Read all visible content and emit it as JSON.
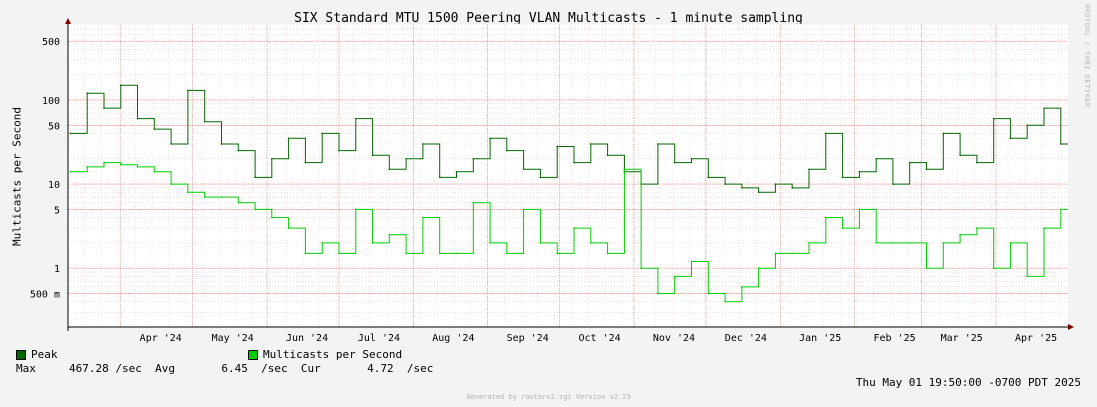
{
  "chart_data": {
    "type": "line",
    "title": "SIX Standard MTU 1500 Peering VLAN Multicasts - 1 minute sampling",
    "ylabel": "Multicasts per Second",
    "yscale": "log",
    "ylim": [
      0.2,
      800
    ],
    "xlim": [
      "2024-03-10",
      "2025-05-01"
    ],
    "y_ticks": [
      {
        "value": 0.5,
        "label": "500 m"
      },
      {
        "value": 1,
        "label": "1"
      },
      {
        "value": 5,
        "label": "5"
      },
      {
        "value": 10,
        "label": "10"
      },
      {
        "value": 50,
        "label": "50"
      },
      {
        "value": 100,
        "label": "100"
      },
      {
        "value": 500,
        "label": "500"
      }
    ],
    "x_ticks": [
      {
        "date": "2024-04-01",
        "label": "Apr '24"
      },
      {
        "date": "2024-05-01",
        "label": "May '24"
      },
      {
        "date": "2024-06-01",
        "label": "Jun '24"
      },
      {
        "date": "2024-07-01",
        "label": "Jul '24"
      },
      {
        "date": "2024-08-01",
        "label": "Aug '24"
      },
      {
        "date": "2024-09-01",
        "label": "Sep '24"
      },
      {
        "date": "2024-10-01",
        "label": "Oct '24"
      },
      {
        "date": "2024-11-01",
        "label": "Nov '24"
      },
      {
        "date": "2024-12-01",
        "label": "Dec '24"
      },
      {
        "date": "2025-01-01",
        "label": "Jan '25"
      },
      {
        "date": "2025-02-01",
        "label": "Feb '25"
      },
      {
        "date": "2025-03-01",
        "label": "Mar '25"
      },
      {
        "date": "2025-04-01",
        "label": "Apr '25"
      }
    ],
    "grid": true,
    "series": [
      {
        "name": "Peak",
        "color": "#006600",
        "x": [
          "2024-03-11",
          "2024-03-18",
          "2024-03-25",
          "2024-04-01",
          "2024-04-08",
          "2024-04-15",
          "2024-04-22",
          "2024-04-29",
          "2024-05-06",
          "2024-05-13",
          "2024-05-20",
          "2024-05-27",
          "2024-06-03",
          "2024-06-10",
          "2024-06-17",
          "2024-06-24",
          "2024-07-01",
          "2024-07-08",
          "2024-07-15",
          "2024-07-22",
          "2024-07-29",
          "2024-08-05",
          "2024-08-12",
          "2024-08-19",
          "2024-08-26",
          "2024-09-02",
          "2024-09-09",
          "2024-09-16",
          "2024-09-23",
          "2024-09-30",
          "2024-10-07",
          "2024-10-14",
          "2024-10-21",
          "2024-10-28",
          "2024-11-04",
          "2024-11-11",
          "2024-11-18",
          "2024-11-25",
          "2024-12-02",
          "2024-12-09",
          "2024-12-16",
          "2024-12-23",
          "2024-12-30",
          "2025-01-06",
          "2025-01-13",
          "2025-01-20",
          "2025-01-27",
          "2025-02-03",
          "2025-02-10",
          "2025-02-17",
          "2025-02-24",
          "2025-03-03",
          "2025-03-10",
          "2025-03-17",
          "2025-03-24",
          "2025-03-31",
          "2025-04-07",
          "2025-04-14",
          "2025-04-21",
          "2025-04-28"
        ],
        "values": [
          40,
          120,
          80,
          150,
          60,
          45,
          30,
          130,
          55,
          30,
          25,
          12,
          20,
          35,
          18,
          40,
          25,
          60,
          22,
          15,
          20,
          30,
          12,
          14,
          20,
          35,
          25,
          15,
          12,
          28,
          18,
          30,
          22,
          14,
          10,
          30,
          18,
          20,
          12,
          10,
          9,
          8,
          10,
          9,
          15,
          40,
          12,
          14,
          20,
          10,
          18,
          15,
          40,
          22,
          18,
          60,
          35,
          50,
          80,
          30
        ]
      },
      {
        "name": "Multicasts per Second",
        "color": "#00cc00",
        "x": [
          "2024-03-11",
          "2024-03-18",
          "2024-03-25",
          "2024-04-01",
          "2024-04-08",
          "2024-04-15",
          "2024-04-22",
          "2024-04-29",
          "2024-05-06",
          "2024-05-13",
          "2024-05-20",
          "2024-05-27",
          "2024-06-03",
          "2024-06-10",
          "2024-06-17",
          "2024-06-24",
          "2024-07-01",
          "2024-07-08",
          "2024-07-15",
          "2024-07-22",
          "2024-07-29",
          "2024-08-05",
          "2024-08-12",
          "2024-08-19",
          "2024-08-26",
          "2024-09-02",
          "2024-09-09",
          "2024-09-16",
          "2024-09-23",
          "2024-09-30",
          "2024-10-07",
          "2024-10-14",
          "2024-10-21",
          "2024-10-28",
          "2024-11-04",
          "2024-11-11",
          "2024-11-18",
          "2024-11-25",
          "2024-12-02",
          "2024-12-09",
          "2024-12-16",
          "2024-12-23",
          "2024-12-30",
          "2025-01-06",
          "2025-01-13",
          "2025-01-20",
          "2025-01-27",
          "2025-02-03",
          "2025-02-10",
          "2025-02-17",
          "2025-02-24",
          "2025-03-03",
          "2025-03-10",
          "2025-03-17",
          "2025-03-24",
          "2025-03-31",
          "2025-04-07",
          "2025-04-14",
          "2025-04-21",
          "2025-04-28"
        ],
        "values": [
          14,
          16,
          18,
          17,
          16,
          14,
          10,
          8,
          7,
          7,
          6,
          5,
          4,
          3,
          1.5,
          2,
          1.5,
          5,
          2,
          2.5,
          1.5,
          4,
          1.5,
          1.5,
          6,
          2,
          1.5,
          5,
          2,
          1.5,
          3,
          2,
          1.5,
          15,
          1,
          0.5,
          0.8,
          1.2,
          0.5,
          0.4,
          0.6,
          1,
          1.5,
          1.5,
          2,
          4,
          3,
          5,
          2,
          2,
          2,
          1,
          2,
          2.5,
          3,
          1,
          2,
          0.8,
          3,
          5
        ]
      }
    ]
  },
  "legend": {
    "peak_label": "Peak",
    "avg_label": "Multicasts per Second",
    "peak_color": "#006600",
    "avg_color": "#00cc00"
  },
  "stats": {
    "max_label": "Max",
    "max_value": "467.28",
    "avg_label": "Avg",
    "avg_value": "6.45",
    "cur_label": "Cur",
    "cur_value": "4.72",
    "unit": "/sec"
  },
  "timestamp": "Thu May 01 19:50:00 -0700 PDT 2025",
  "watermark": "RRDTOOL / TOBI OETIKER",
  "generated": "Generated by routers2.cgi Version v2.23"
}
